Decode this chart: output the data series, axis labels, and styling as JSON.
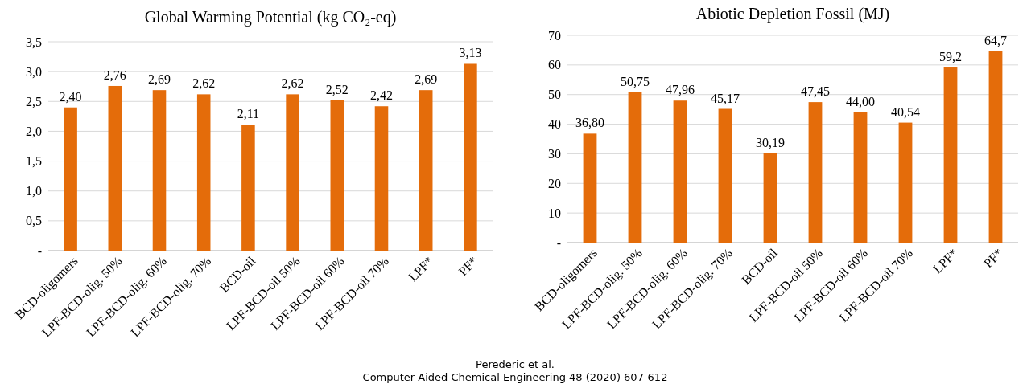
{
  "chart_data": [
    {
      "type": "bar",
      "title": "Global Warming Potential (kg CO₂-eq)",
      "categories": [
        "BCD-oligomers",
        "LPF-BCD-olig. 50%",
        "LPF-BCD-olig. 60%",
        "LPF-BCD-olig. 70%",
        "BCD-oil",
        "LPF-BCD-oil 50%",
        "LPF-BCD-oil 60%",
        "LPF-BCD-oil 70%",
        "LPF*",
        "PF*"
      ],
      "values": [
        2.4,
        2.76,
        2.69,
        2.62,
        2.11,
        2.62,
        2.52,
        2.42,
        2.69,
        3.13
      ],
      "value_labels": [
        "2,40",
        "2,76",
        "2,69",
        "2,62",
        "2,11",
        "2,62",
        "2,52",
        "2,42",
        "2,69",
        "3,13"
      ],
      "color": "#e46c0a",
      "ylim": [
        0,
        3.5
      ],
      "yticks": [
        {
          "value": 0,
          "label": "-"
        },
        {
          "value": 0.5,
          "label": "0,5"
        },
        {
          "value": 1,
          "label": "1,0"
        },
        {
          "value": 1.5,
          "label": "1,5"
        },
        {
          "value": 2,
          "label": "2,0"
        },
        {
          "value": 2.5,
          "label": "2,5"
        },
        {
          "value": 3,
          "label": "3,0"
        },
        {
          "value": 3.5,
          "label": "3,5"
        }
      ],
      "grid": "y",
      "annotations": [
        "Perederic et al.",
        "Computer Aided Chemical Engineering 48 (2020) 607-612"
      ]
    },
    {
      "type": "bar",
      "title": "Abiotic Depletion Fossil (MJ)",
      "categories": [
        "BCD-oligomers",
        "LPF-BCD-olig. 50%",
        "LPF-BCD-olig. 60%",
        "LPF-BCD-olig. 70%",
        "BCD-oil",
        "LPF-BCD-oil 50%",
        "LPF-BCD-oil 60%",
        "LPF-BCD-oil 70%",
        "LPF*",
        "PF*"
      ],
      "values": [
        36.8,
        50.75,
        47.96,
        45.17,
        30.19,
        47.45,
        44.0,
        40.54,
        59.2,
        64.7
      ],
      "value_labels": [
        "36,80",
        "50,75",
        "47,96",
        "45,17",
        "30,19",
        "47,45",
        "44,00",
        "40,54",
        "59,2",
        "64,7"
      ],
      "color": "#e46c0a",
      "ylim": [
        0,
        70
      ],
      "yticks": [
        {
          "value": 0,
          "label": "-"
        },
        10,
        20,
        30,
        40,
        50,
        60,
        70
      ],
      "grid": "y"
    }
  ]
}
